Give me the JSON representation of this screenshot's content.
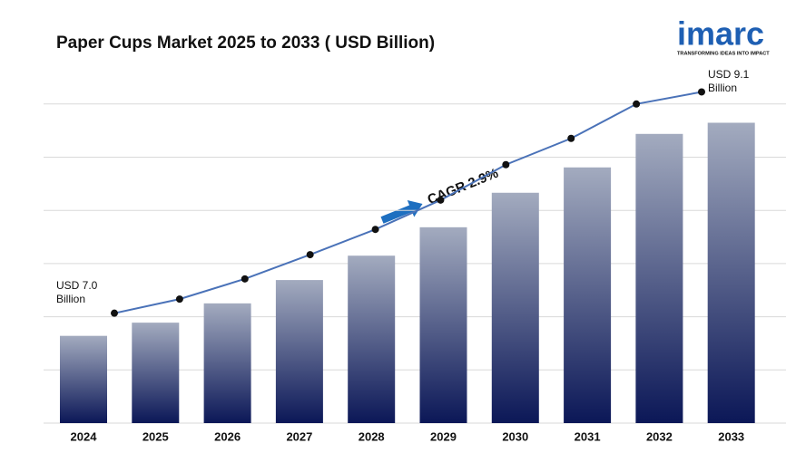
{
  "chart_data": {
    "type": "bar",
    "title": "Paper Cups Market 2025 to 2033 ( USD Billion)",
    "categories": [
      "2024",
      "2025",
      "2026",
      "2027",
      "2028",
      "2029",
      "2030",
      "2031",
      "2032",
      "2033"
    ],
    "values": [
      7.0,
      7.13,
      7.32,
      7.55,
      7.79,
      8.07,
      8.41,
      8.66,
      8.99,
      9.1
    ],
    "ylim": [
      6.14,
      9.64
    ],
    "grid": true,
    "bar_color_top": "#a3abbf",
    "bar_color_bottom": "#0b1757",
    "line_color": "#4a72b8",
    "annotations": {
      "start": [
        "USD 7.0",
        "Billion"
      ],
      "end": [
        "USD 9.1",
        "Billion"
      ],
      "cagr": "CAGR  2.9%"
    },
    "logo": {
      "name": "imarc",
      "tagline": "TRANSFORMING IDEAS INTO IMPACT"
    }
  }
}
